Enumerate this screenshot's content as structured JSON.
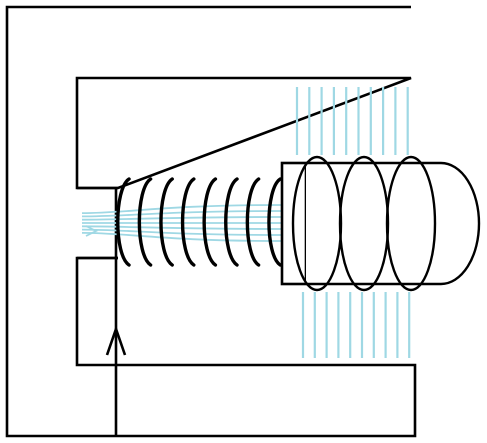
{
  "diagram": {
    "stroke_color": "#000000",
    "field_line_color": "#9fd8e4",
    "background_color": "#ffffff",
    "coil_turn_count": 8,
    "disc_count": 3,
    "upper_field_line_count": 10,
    "lower_field_line_count": 10,
    "current_direction": "up",
    "icons": {
      "frame": "c-shaped-yoke",
      "coil": "solenoid-coil",
      "armature": "armature-disc-stack",
      "field": "magnetic-field-lines",
      "current": "current-arrow-icon"
    }
  }
}
